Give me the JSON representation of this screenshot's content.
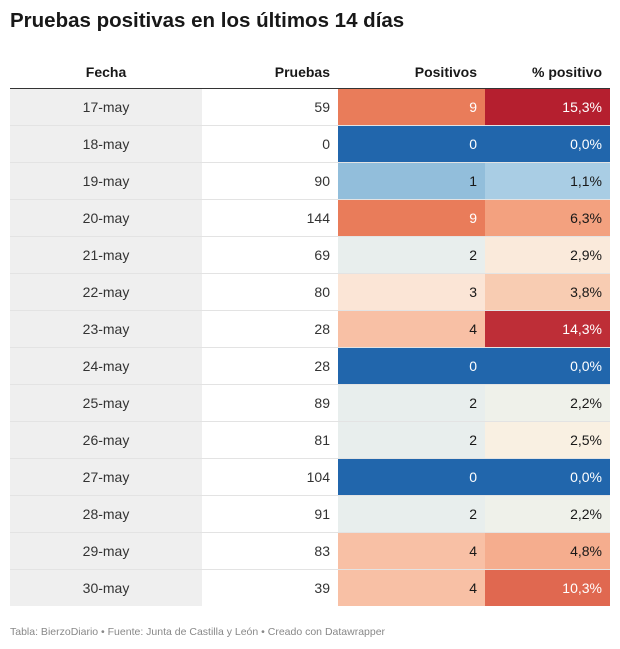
{
  "title": "Pruebas positivas en los últimos 14 días",
  "footer": "Tabla: BierzoDiario • Fuente: Junta de Castilla y León • Creado con Datawrapper",
  "chart_data": {
    "type": "table",
    "columns": [
      "Fecha",
      "Pruebas",
      "Positivos",
      "% positivo"
    ],
    "rows": [
      {
        "fecha": "17-may",
        "pruebas": "59",
        "positivos": "9",
        "pct": "15,3%",
        "pos_bg": "#e97c5a",
        "pos_fg": "#ffffff",
        "pct_bg": "#b51f2f",
        "pct_fg": "#ffffff"
      },
      {
        "fecha": "18-may",
        "pruebas": "0",
        "positivos": "0",
        "pct": "0,0%",
        "pos_bg": "#2166ac",
        "pos_fg": "#ffffff",
        "pct_bg": "#2166ac",
        "pct_fg": "#ffffff"
      },
      {
        "fecha": "19-may",
        "pruebas": "90",
        "positivos": "1",
        "pct": "1,1%",
        "pos_bg": "#92bedb",
        "pos_fg": "#181818",
        "pct_bg": "#a9cde4",
        "pct_fg": "#181818"
      },
      {
        "fecha": "20-may",
        "pruebas": "144",
        "positivos": "9",
        "pct": "6,3%",
        "pos_bg": "#e97c5a",
        "pos_fg": "#ffffff",
        "pct_bg": "#f3a17f",
        "pct_fg": "#181818"
      },
      {
        "fecha": "21-may",
        "pruebas": "69",
        "positivos": "2",
        "pct": "2,9%",
        "pos_bg": "#e8eeed",
        "pos_fg": "#181818",
        "pct_bg": "#faeadb",
        "pct_fg": "#181818"
      },
      {
        "fecha": "22-may",
        "pruebas": "80",
        "positivos": "3",
        "pct": "3,8%",
        "pos_bg": "#fbe5d6",
        "pos_fg": "#181818",
        "pct_bg": "#f8ccb2",
        "pct_fg": "#181818"
      },
      {
        "fecha": "23-may",
        "pruebas": "28",
        "positivos": "4",
        "pct": "14,3%",
        "pos_bg": "#f8c0a5",
        "pos_fg": "#181818",
        "pct_bg": "#be2e37",
        "pct_fg": "#ffffff"
      },
      {
        "fecha": "24-may",
        "pruebas": "28",
        "positivos": "0",
        "pct": "0,0%",
        "pos_bg": "#2166ac",
        "pos_fg": "#ffffff",
        "pct_bg": "#2166ac",
        "pct_fg": "#ffffff"
      },
      {
        "fecha": "25-may",
        "pruebas": "89",
        "positivos": "2",
        "pct": "2,2%",
        "pos_bg": "#e8eeed",
        "pos_fg": "#181818",
        "pct_bg": "#eff1ea",
        "pct_fg": "#181818"
      },
      {
        "fecha": "26-may",
        "pruebas": "81",
        "positivos": "2",
        "pct": "2,5%",
        "pos_bg": "#e8eeed",
        "pos_fg": "#181818",
        "pct_bg": "#f9f0e2",
        "pct_fg": "#181818"
      },
      {
        "fecha": "27-may",
        "pruebas": "104",
        "positivos": "0",
        "pct": "0,0%",
        "pos_bg": "#2166ac",
        "pos_fg": "#ffffff",
        "pct_bg": "#2166ac",
        "pct_fg": "#ffffff"
      },
      {
        "fecha": "28-may",
        "pruebas": "91",
        "positivos": "2",
        "pct": "2,2%",
        "pos_bg": "#e8eeed",
        "pos_fg": "#181818",
        "pct_bg": "#eff1ea",
        "pct_fg": "#181818"
      },
      {
        "fecha": "29-may",
        "pruebas": "83",
        "positivos": "4",
        "pct": "4,8%",
        "pos_bg": "#f8c0a5",
        "pos_fg": "#181818",
        "pct_bg": "#f5ad8e",
        "pct_fg": "#181818"
      },
      {
        "fecha": "30-may",
        "pruebas": "39",
        "positivos": "4",
        "pct": "10,3%",
        "pos_bg": "#f8c0a5",
        "pos_fg": "#181818",
        "pct_bg": "#e06850",
        "pct_fg": "#ffffff"
      }
    ]
  }
}
